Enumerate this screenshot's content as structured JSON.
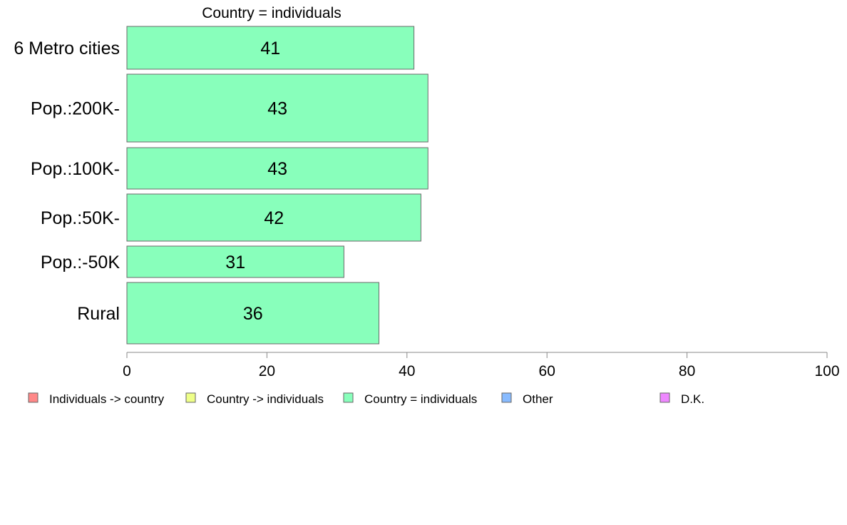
{
  "chart_data": {
    "type": "bar",
    "orientation": "horizontal",
    "title": "Country = individuals",
    "categories": [
      "6 Metro cities",
      "Pop.:200K-",
      "Pop.:100K-",
      "Pop.:50K-",
      "Pop.:-50K",
      "Rural"
    ],
    "values": [
      41,
      43,
      43,
      42,
      31,
      36
    ],
    "data_labels": [
      "41",
      "43",
      "43",
      "42",
      "31",
      "36"
    ],
    "xlim": [
      0,
      100
    ],
    "x_ticks": [
      0,
      20,
      40,
      60,
      80,
      100
    ],
    "x_tick_labels": [
      "0",
      "20",
      "40",
      "60",
      "80",
      "100"
    ],
    "bar_color": "#88ffbb",
    "bar_stroke": "#6a6a6a",
    "grid": false,
    "legend_position": "bottom",
    "legend": [
      {
        "label": "Individuals -> country",
        "color": "#ff8888"
      },
      {
        "label": "Country -> individuals",
        "color": "#eeff88"
      },
      {
        "label": "Country = individuals",
        "color": "#88ffbb"
      },
      {
        "label": "Other",
        "color": "#88bbff"
      },
      {
        "label": "D.K.",
        "color": "#ee88ff"
      }
    ]
  }
}
